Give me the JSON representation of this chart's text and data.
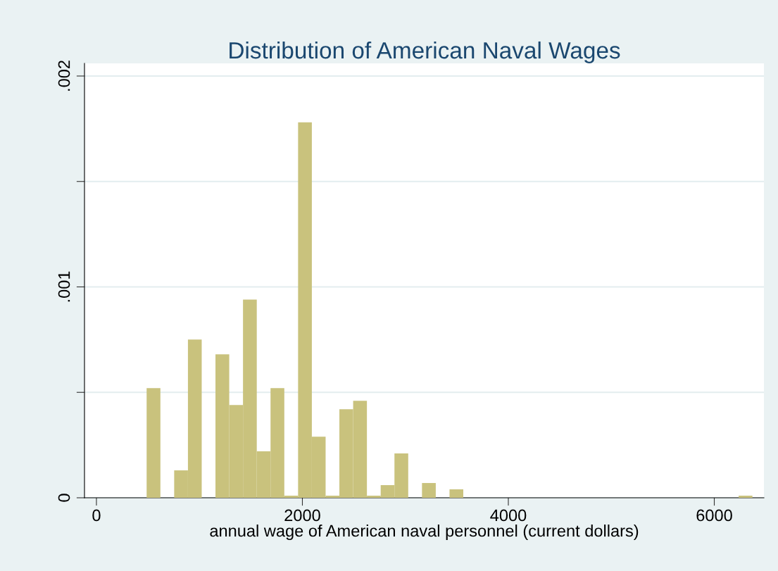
{
  "chart_data": {
    "type": "histogram",
    "title": "Distribution of American Naval Wages",
    "xlabel": "annual wage of American naval personnel (current dollars)",
    "bins": [
      487.5,
      621.2,
      754.9,
      888.6,
      1022.3,
      1156.0,
      1289.7,
      1423.4,
      1557.1,
      1690.8,
      1824.5,
      1958.2,
      2091.9,
      2225.6,
      2359.3,
      2493.0,
      2626.7,
      2760.4,
      2894.1,
      3027.8,
      3161.5,
      3295.2,
      3428.9,
      3562.6,
      3696.3,
      3830.0,
      3963.7,
      4097.4,
      4231.1,
      4364.8,
      4498.5,
      4632.2,
      4765.9,
      4899.6,
      5033.3,
      5167.0,
      5300.7,
      5434.4,
      5568.1,
      5701.8,
      5835.5,
      5969.2,
      6102.9,
      6236.6,
      6370.3
    ],
    "values": [
      0.00052,
      0,
      0.00013,
      0.00075,
      0,
      0.00068,
      0.00044,
      0.00094,
      0.00022,
      0.00052,
      1e-05,
      0.00178,
      0.00029,
      1e-05,
      0.00042,
      0.00046,
      1e-05,
      6e-05,
      0.00021,
      0,
      7e-05,
      0,
      4e-05,
      0,
      0,
      0,
      0,
      0,
      0,
      0,
      0,
      0,
      0,
      0,
      0,
      0,
      0,
      0,
      0,
      0,
      0,
      0,
      0,
      1e-05
    ],
    "color": "#c9c27d",
    "xlim": [
      -116,
      6482
    ],
    "xticks": [
      0,
      2000,
      4000,
      6000
    ],
    "ylim": [
      0,
      0.00206
    ],
    "yticks": [
      {
        "value": 0,
        "label": "0"
      },
      {
        "value": 0.0005,
        "label": null
      },
      {
        "value": 0.001,
        "label": ".001"
      },
      {
        "value": 0.0015,
        "label": null
      },
      {
        "value": 0.002,
        "label": ".002"
      }
    ],
    "grid": "y"
  }
}
